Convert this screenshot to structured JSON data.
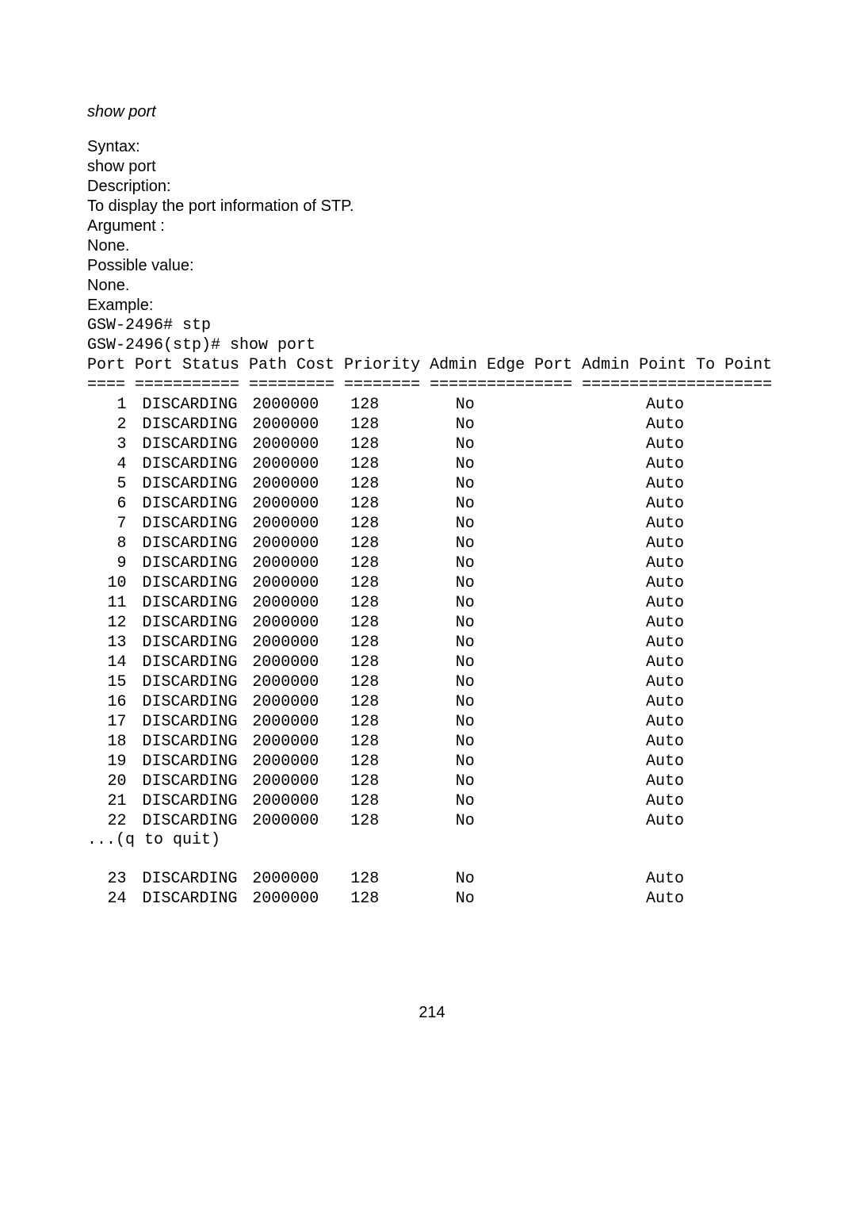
{
  "command_name": "show port",
  "syntax_label": "Syntax:",
  "syntax_value": "show port",
  "description_label": "Description:",
  "description_value": "To display the port information of STP.",
  "argument_label": "Argument :",
  "argument_value": "None.",
  "possible_label": "Possible value:",
  "possible_value": "None.",
  "example_label": "Example:",
  "cli_line1": "GSW-2496# stp",
  "cli_line2": "GSW-2496(stp)# show port",
  "header_line": "Port Port Status Path Cost Priority Admin Edge Port Admin Point To Point",
  "separator_line": "==== =========== ========= ======== =============== ====================",
  "rows_group1": [
    {
      "port": "1",
      "status": "DISCARDING",
      "cost": "2000000",
      "pri": "128",
      "edge": "No",
      "p2p": "Auto"
    },
    {
      "port": "2",
      "status": "DISCARDING",
      "cost": "2000000",
      "pri": "128",
      "edge": "No",
      "p2p": "Auto"
    },
    {
      "port": "3",
      "status": "DISCARDING",
      "cost": "2000000",
      "pri": "128",
      "edge": "No",
      "p2p": "Auto"
    },
    {
      "port": "4",
      "status": "DISCARDING",
      "cost": "2000000",
      "pri": "128",
      "edge": "No",
      "p2p": "Auto"
    },
    {
      "port": "5",
      "status": "DISCARDING",
      "cost": "2000000",
      "pri": "128",
      "edge": "No",
      "p2p": "Auto"
    },
    {
      "port": "6",
      "status": "DISCARDING",
      "cost": "2000000",
      "pri": "128",
      "edge": "No",
      "p2p": "Auto"
    },
    {
      "port": "7",
      "status": "DISCARDING",
      "cost": "2000000",
      "pri": "128",
      "edge": "No",
      "p2p": "Auto"
    },
    {
      "port": "8",
      "status": "DISCARDING",
      "cost": "2000000",
      "pri": "128",
      "edge": "No",
      "p2p": "Auto"
    },
    {
      "port": "9",
      "status": "DISCARDING",
      "cost": "2000000",
      "pri": "128",
      "edge": "No",
      "p2p": "Auto"
    },
    {
      "port": "10",
      "status": "DISCARDING",
      "cost": "2000000",
      "pri": "128",
      "edge": "No",
      "p2p": "Auto"
    },
    {
      "port": "11",
      "status": "DISCARDING",
      "cost": "2000000",
      "pri": "128",
      "edge": "No",
      "p2p": "Auto"
    },
    {
      "port": "12",
      "status": "DISCARDING",
      "cost": "2000000",
      "pri": "128",
      "edge": "No",
      "p2p": "Auto"
    },
    {
      "port": "13",
      "status": "DISCARDING",
      "cost": "2000000",
      "pri": "128",
      "edge": "No",
      "p2p": "Auto"
    },
    {
      "port": "14",
      "status": "DISCARDING",
      "cost": "2000000",
      "pri": "128",
      "edge": "No",
      "p2p": "Auto"
    },
    {
      "port": "15",
      "status": "DISCARDING",
      "cost": "2000000",
      "pri": "128",
      "edge": "No",
      "p2p": "Auto"
    },
    {
      "port": "16",
      "status": "DISCARDING",
      "cost": "2000000",
      "pri": "128",
      "edge": "No",
      "p2p": "Auto"
    },
    {
      "port": "17",
      "status": "DISCARDING",
      "cost": "2000000",
      "pri": "128",
      "edge": "No",
      "p2p": "Auto"
    },
    {
      "port": "18",
      "status": "DISCARDING",
      "cost": "2000000",
      "pri": "128",
      "edge": "No",
      "p2p": "Auto"
    },
    {
      "port": "19",
      "status": "DISCARDING",
      "cost": "2000000",
      "pri": "128",
      "edge": "No",
      "p2p": "Auto"
    },
    {
      "port": "20",
      "status": "DISCARDING",
      "cost": "2000000",
      "pri": "128",
      "edge": "No",
      "p2p": "Auto"
    },
    {
      "port": "21",
      "status": "DISCARDING",
      "cost": "2000000",
      "pri": "128",
      "edge": "No",
      "p2p": "Auto"
    },
    {
      "port": "22",
      "status": "DISCARDING",
      "cost": "2000000",
      "pri": "128",
      "edge": "No",
      "p2p": "Auto"
    }
  ],
  "quit_line": "...(q to quit)",
  "rows_group2": [
    {
      "port": "23",
      "status": "DISCARDING",
      "cost": "2000000",
      "pri": "128",
      "edge": "No",
      "p2p": "Auto"
    },
    {
      "port": "24",
      "status": "DISCARDING",
      "cost": "2000000",
      "pri": "128",
      "edge": "No",
      "p2p": "Auto"
    }
  ],
  "page_number": "214"
}
